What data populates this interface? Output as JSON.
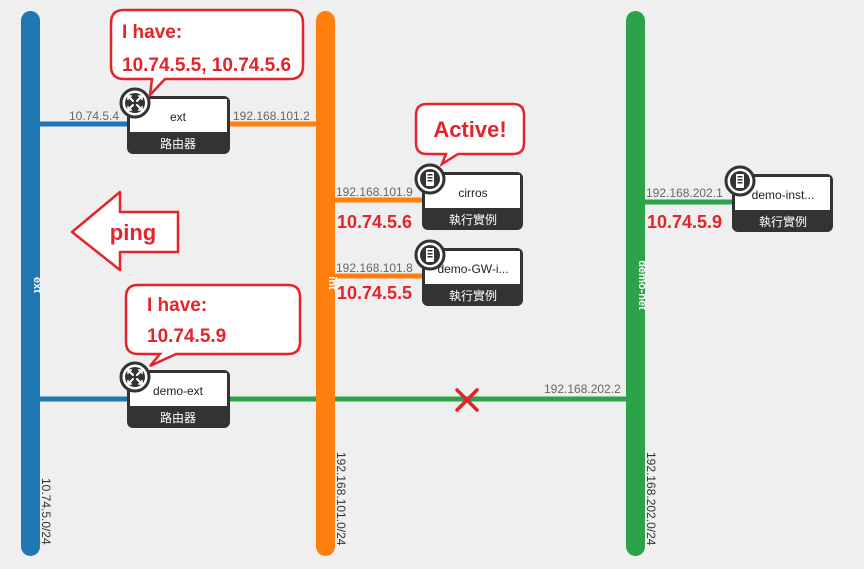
{
  "networks": {
    "ext": {
      "name": "ext",
      "cidr": "10.74.5.0/24",
      "color": "#1f77b4"
    },
    "int": {
      "name": "int",
      "cidr": "192.168.101.0/24",
      "color": "#ff7f0e"
    },
    "demo_net": {
      "name": "demo-net",
      "cidr": "192.168.202.0/24",
      "color": "#2ca34a"
    }
  },
  "nodes": {
    "router_ext": {
      "name": "ext",
      "type": "路由器",
      "icon": "router-icon"
    },
    "router_demo_ext": {
      "name": "demo-ext",
      "type": "路由器",
      "icon": "router-icon"
    },
    "cirros": {
      "name": "cirros",
      "type": "執行實例",
      "icon": "server-icon"
    },
    "demo_gw": {
      "name": "demo-GW-i...",
      "type": "執行實例",
      "icon": "server-icon"
    },
    "demo_inst": {
      "name": "demo-inst...",
      "type": "執行實例",
      "icon": "server-icon"
    }
  },
  "ports": {
    "ext_router_ext": "10.74.5.4",
    "ext_router_int": "192.168.101.2",
    "cirros_int": "192.168.101.9",
    "demo_gw_int": "192.168.101.8",
    "demo_inst_net": "192.168.202.1",
    "demo_ext_net": "192.168.202.2"
  },
  "annotations": {
    "callout_1_line1": "I have:",
    "callout_1_line2": "10.74.5.5, 10.74.5.6",
    "callout_active": "Active!",
    "ping_label": "ping",
    "callout_2_line1": "I have:",
    "callout_2_line2": "10.74.5.9",
    "float_cirros": "10.74.5.6",
    "float_gw": "10.74.5.5",
    "float_inst": "10.74.5.9"
  },
  "colors": {
    "annotation": "#e4232b",
    "node_bar": "#333333"
  }
}
